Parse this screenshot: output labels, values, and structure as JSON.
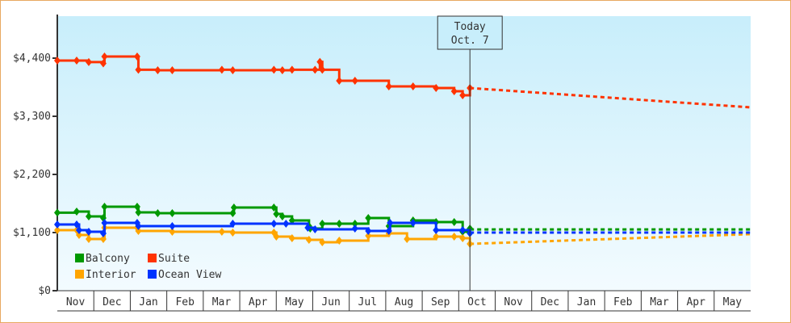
{
  "chart_data": {
    "type": "line",
    "title": "",
    "xlabel": "",
    "ylabel": "",
    "x_unit": "days since Nov 1",
    "ylim": [
      0,
      4950
    ],
    "y_ticks": [
      {
        "value": 0,
        "label": "$0"
      },
      {
        "value": 1100,
        "label": "$1,100"
      },
      {
        "value": 2200,
        "label": "$2,200"
      },
      {
        "value": 3300,
        "label": "$3,300"
      },
      {
        "value": 4400,
        "label": "$4,400"
      }
    ],
    "x_ticks": [
      "Nov",
      "Dec",
      "Jan",
      "Feb",
      "Mar",
      "Apr",
      "May",
      "Jun",
      "Jul",
      "Aug",
      "Sep",
      "Oct",
      "Nov",
      "Dec",
      "Jan",
      "Feb",
      "Mar",
      "Apr",
      "May"
    ],
    "x_range_days": [
      0,
      573
    ],
    "today": {
      "day": 341,
      "label_line1": "Today",
      "label_line2": "Oct. 7"
    },
    "legend": {
      "placement": "bottom-left"
    },
    "series": [
      {
        "name": "Balcony",
        "color": "#009900",
        "points": [
          [
            0,
            1477
          ],
          [
            16,
            1497
          ],
          [
            26,
            1405
          ],
          [
            38,
            1375
          ],
          [
            39,
            1589
          ],
          [
            66,
            1589
          ],
          [
            67,
            1482
          ],
          [
            83,
            1467
          ],
          [
            95,
            1467
          ],
          [
            145,
            1467
          ],
          [
            146,
            1573
          ],
          [
            179,
            1573
          ],
          [
            181,
            1451
          ],
          [
            186,
            1405
          ],
          [
            194,
            1329
          ],
          [
            208,
            1222
          ],
          [
            209,
            1176
          ],
          [
            219,
            1268
          ],
          [
            233,
            1268
          ],
          [
            246,
            1268
          ],
          [
            257,
            1375
          ],
          [
            274,
            1222
          ],
          [
            294,
            1329
          ],
          [
            313,
            1298
          ],
          [
            328,
            1298
          ],
          [
            335,
            1115
          ],
          [
            341,
            1176
          ]
        ],
        "forecast": [
          [
            341,
            1160
          ],
          [
            573,
            1160
          ]
        ]
      },
      {
        "name": "Suite",
        "color": "#ff3300",
        "points": [
          [
            0,
            4355
          ],
          [
            16,
            4355
          ],
          [
            26,
            4325
          ],
          [
            38,
            4300
          ],
          [
            39,
            4430
          ],
          [
            66,
            4430
          ],
          [
            67,
            4180
          ],
          [
            83,
            4170
          ],
          [
            95,
            4170
          ],
          [
            136,
            4180
          ],
          [
            145,
            4170
          ],
          [
            179,
            4180
          ],
          [
            186,
            4170
          ],
          [
            194,
            4180
          ],
          [
            213,
            4180
          ],
          [
            217,
            4330
          ],
          [
            219,
            4180
          ],
          [
            233,
            3972
          ],
          [
            246,
            3972
          ],
          [
            274,
            3866
          ],
          [
            294,
            3866
          ],
          [
            313,
            3835
          ],
          [
            328,
            3774
          ],
          [
            335,
            3698
          ],
          [
            341,
            3835
          ]
        ],
        "forecast": [
          [
            341,
            3835
          ],
          [
            573,
            3468
          ]
        ]
      },
      {
        "name": "Interior",
        "color": "#ffa500",
        "points": [
          [
            0,
            1146
          ],
          [
            16,
            1146
          ],
          [
            18,
            1054
          ],
          [
            26,
            978
          ],
          [
            38,
            978
          ],
          [
            39,
            1192
          ],
          [
            66,
            1192
          ],
          [
            67,
            1130
          ],
          [
            95,
            1115
          ],
          [
            136,
            1115
          ],
          [
            145,
            1100
          ],
          [
            179,
            1100
          ],
          [
            181,
            1024
          ],
          [
            194,
            993
          ],
          [
            208,
            962
          ],
          [
            219,
            917
          ],
          [
            233,
            947
          ],
          [
            257,
            1039
          ],
          [
            274,
            1085
          ],
          [
            289,
            978
          ],
          [
            313,
            1024
          ],
          [
            328,
            1024
          ],
          [
            335,
            993
          ],
          [
            341,
            886
          ]
        ],
        "forecast": [
          [
            341,
            886
          ],
          [
            573,
            1070
          ]
        ]
      },
      {
        "name": "Ocean View",
        "color": "#0033ff",
        "points": [
          [
            0,
            1253
          ],
          [
            16,
            1253
          ],
          [
            18,
            1146
          ],
          [
            26,
            1115
          ],
          [
            38,
            1085
          ],
          [
            39,
            1283
          ],
          [
            66,
            1283
          ],
          [
            67,
            1222
          ],
          [
            95,
            1222
          ],
          [
            145,
            1268
          ],
          [
            179,
            1268
          ],
          [
            189,
            1268
          ],
          [
            207,
            1192
          ],
          [
            213,
            1161
          ],
          [
            246,
            1176
          ],
          [
            257,
            1130
          ],
          [
            274,
            1130
          ],
          [
            275,
            1283
          ],
          [
            294,
            1283
          ],
          [
            313,
            1146
          ],
          [
            335,
            1146
          ],
          [
            341,
            1085
          ]
        ],
        "forecast": [
          [
            341,
            1100
          ],
          [
            573,
            1100
          ]
        ]
      }
    ]
  }
}
